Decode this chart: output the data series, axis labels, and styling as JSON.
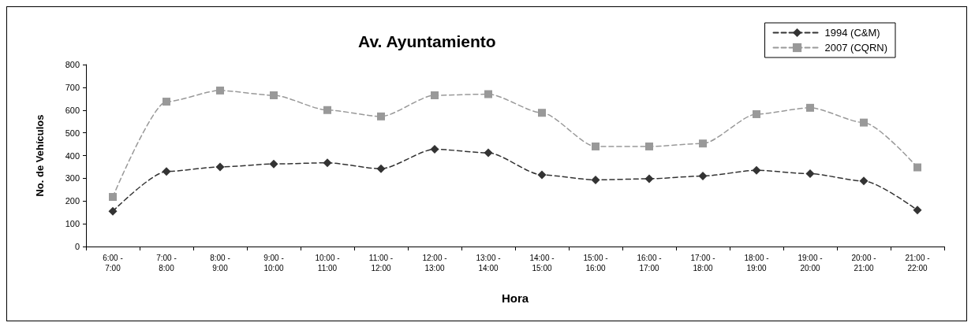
{
  "chart_data": {
    "type": "line",
    "title": "Av. Ayuntamiento",
    "xlabel": "Hora",
    "ylabel": "No. de Vehículos",
    "categories": [
      "6:00 -\n7:00",
      "7:00 -\n8:00",
      "8:00 -\n9:00",
      "9:00 -\n10:00",
      "10:00 -\n11:00",
      "11:00 -\n12:00",
      "12:00 -\n13:00",
      "13:00 -\n14:00",
      "14:00 -\n15:00",
      "15:00 -\n16:00",
      "16:00 -\n17:00",
      "17:00 -\n18:00",
      "18:00 -\n19:00",
      "19:00 -\n20:00",
      "20:00 -\n21:00",
      "21:00 -\n22:00"
    ],
    "series": [
      {
        "name": "1994 (C&M)",
        "color": "#333333",
        "marker": "diamond",
        "values": [
          155,
          330,
          350,
          363,
          368,
          342,
          428,
          412,
          315,
          293,
          298,
          310,
          335,
          320,
          288,
          160
        ]
      },
      {
        "name": "2007 (CQRN)",
        "color": "#999999",
        "marker": "square",
        "values": [
          218,
          637,
          686,
          665,
          600,
          572,
          665,
          670,
          588,
          440,
          440,
          453,
          582,
          610,
          545,
          348
        ]
      }
    ],
    "ylim": [
      0,
      800
    ],
    "yticks": [
      0,
      100,
      200,
      300,
      400,
      500,
      600,
      700,
      800
    ],
    "grid": false,
    "legend": "top right",
    "line_style": "dashed"
  }
}
